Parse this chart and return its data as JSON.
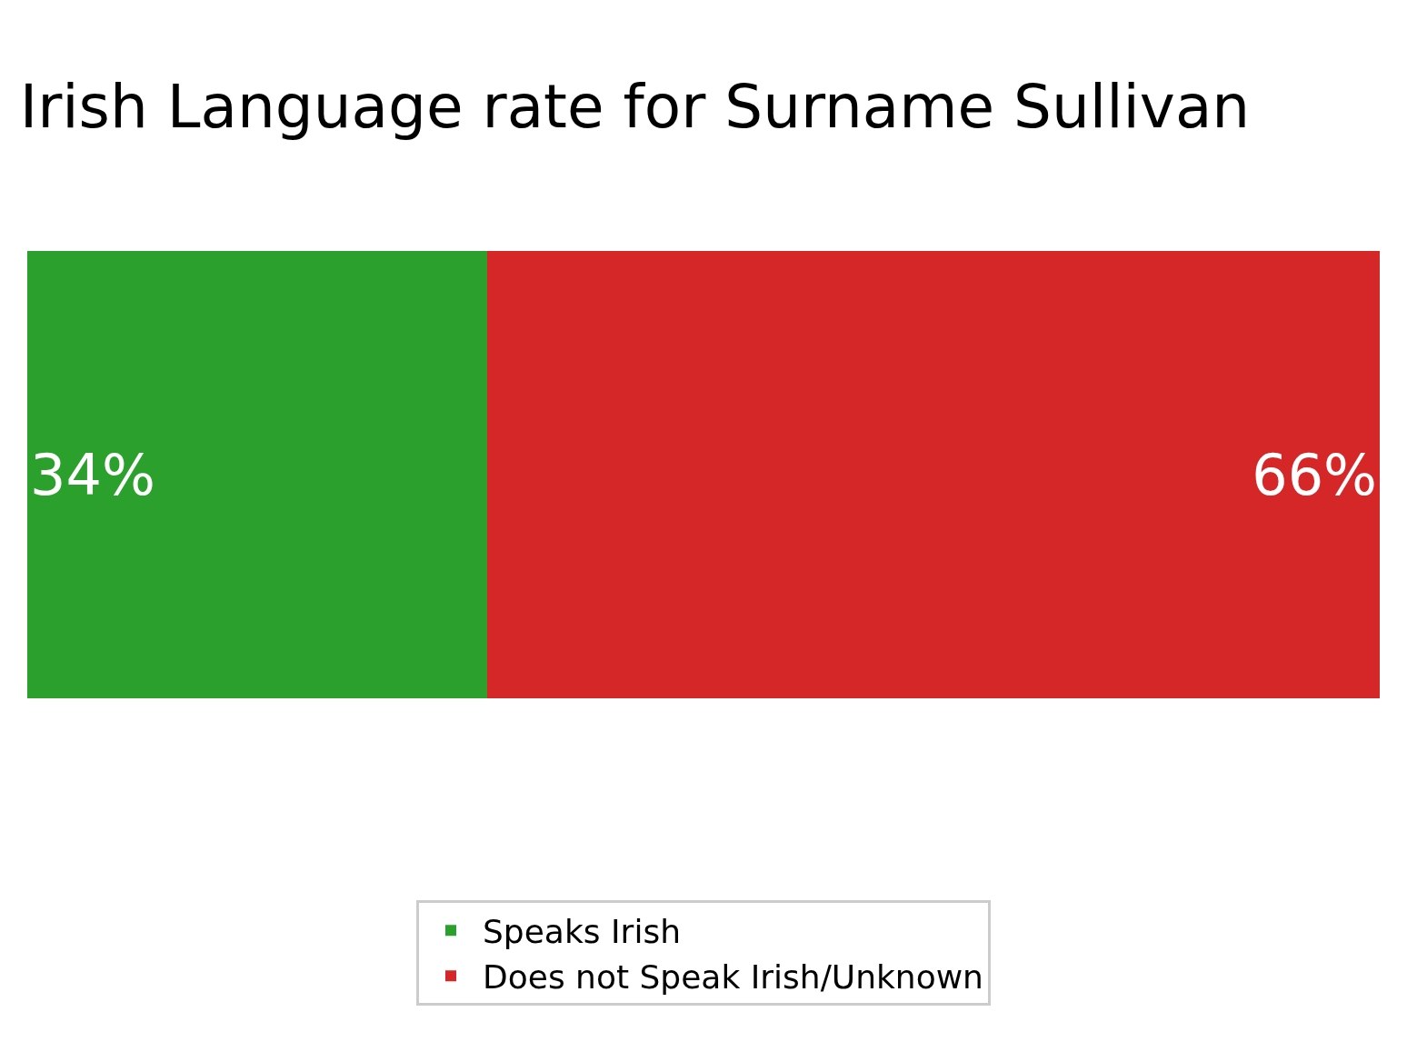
{
  "chart_data": {
    "type": "bar",
    "title": "Irish Language rate for Surname Sullivan",
    "orientation": "horizontal",
    "stacked": true,
    "categories": [
      null
    ],
    "series": [
      {
        "name": "Speaks Irish",
        "color": "#2ca02c",
        "values": [
          34
        ],
        "value_labels": [
          "34%"
        ]
      },
      {
        "name": "Does not Speak Irish/Unknown",
        "color": "#d62728",
        "values": [
          66
        ],
        "value_labels": [
          "66%"
        ]
      }
    ],
    "xlim": [
      0,
      100
    ],
    "tick_labels": false,
    "legend": "bottom"
  }
}
